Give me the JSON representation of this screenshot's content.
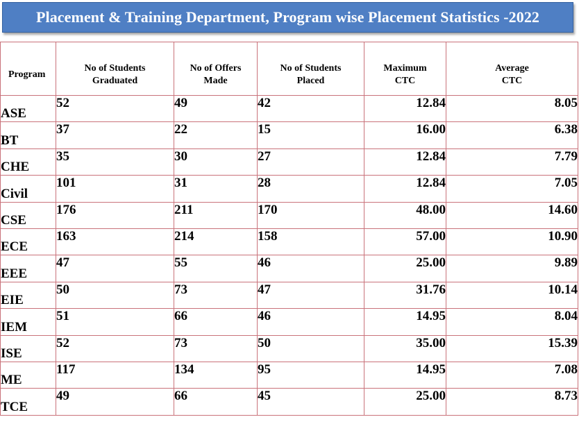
{
  "title": "Placement & Training Department, Program wise Placement Statistics  -2022",
  "headers": {
    "program": "Program",
    "graduated": [
      "No of  Students",
      "Graduated"
    ],
    "offers": [
      "No of Offers",
      "Made"
    ],
    "placed": [
      "No of Students",
      "Placed"
    ],
    "max_ctc": [
      "Maximum",
      "CTC"
    ],
    "avg_ctc": [
      "Average",
      "CTC"
    ]
  },
  "rows": [
    {
      "program": "ASE",
      "graduated": "52",
      "offers": "49",
      "placed": "42",
      "max_ctc": "12.84",
      "avg_ctc": "8.05"
    },
    {
      "program": "BT",
      "graduated": "37",
      "offers": "22",
      "placed": "15",
      "max_ctc": "16.00",
      "avg_ctc": "6.38"
    },
    {
      "program": "CHE",
      "graduated": "35",
      "offers": "30",
      "placed": "27",
      "max_ctc": "12.84",
      "avg_ctc": "7.79"
    },
    {
      "program": "Civil",
      "graduated": "101",
      "offers": "31",
      "placed": "28",
      "max_ctc": "12.84",
      "avg_ctc": "7.05"
    },
    {
      "program": "CSE",
      "graduated": "176",
      "offers": "211",
      "placed": "170",
      "max_ctc": "48.00",
      "avg_ctc": "14.60"
    },
    {
      "program": "ECE",
      "graduated": "163",
      "offers": "214",
      "placed": "158",
      "max_ctc": "57.00",
      "avg_ctc": "10.90"
    },
    {
      "program": "EEE",
      "graduated": "47",
      "offers": "55",
      "placed": "46",
      "max_ctc": "25.00",
      "avg_ctc": "9.89"
    },
    {
      "program": "EIE",
      "graduated": "50",
      "offers": "73",
      "placed": "47",
      "max_ctc": "31.76",
      "avg_ctc": "10.14"
    },
    {
      "program": "IEM",
      "graduated": "51",
      "offers": "66",
      "placed": "46",
      "max_ctc": "14.95",
      "avg_ctc": "8.04"
    },
    {
      "program": "ISE",
      "graduated": "52",
      "offers": "73",
      "placed": "50",
      "max_ctc": "35.00",
      "avg_ctc": "15.39"
    },
    {
      "program": "ME",
      "graduated": "117",
      "offers": "134",
      "placed": "95",
      "max_ctc": "14.95",
      "avg_ctc": "7.08"
    },
    {
      "program": "TCE",
      "graduated": "49",
      "offers": "66",
      "placed": "45",
      "max_ctc": "25.00",
      "avg_ctc": "8.73"
    }
  ],
  "colors": {
    "title_background": "#4f7fc4",
    "title_text": "#ffffff",
    "grid_lines": "#c9727a"
  }
}
